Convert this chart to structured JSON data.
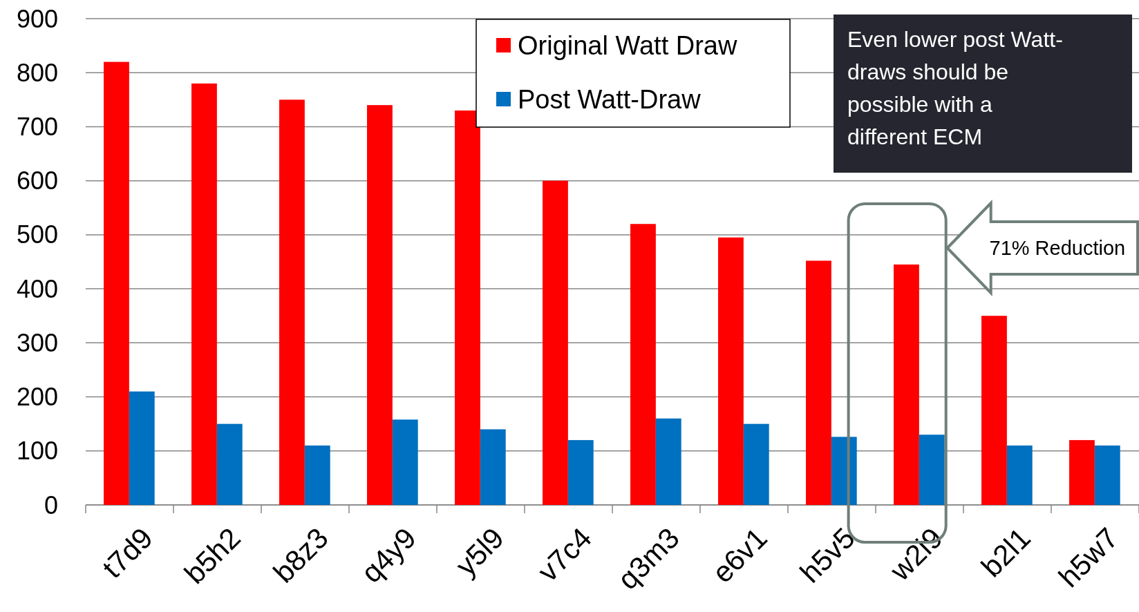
{
  "chart_data": {
    "type": "bar",
    "categories": [
      "t7d9",
      "b5h2",
      "b8z3",
      "q4y9",
      "y5l9",
      "v7c4",
      "q3m3",
      "e6v1",
      "h5v5",
      "w2i9",
      "b2l1",
      "h5w7"
    ],
    "series": [
      {
        "name": "Original Watt Draw",
        "color": "#ff0000",
        "values": [
          820,
          780,
          750,
          740,
          730,
          600,
          520,
          495,
          452,
          445,
          350,
          120
        ]
      },
      {
        "name": "Post Watt-Draw",
        "color": "#0070c0",
        "values": [
          210,
          150,
          110,
          158,
          140,
          120,
          160,
          150,
          126,
          130,
          110,
          110
        ]
      }
    ],
    "ylim": [
      0,
      900
    ],
    "yticks": [
      0,
      100,
      200,
      300,
      400,
      500,
      600,
      700,
      800,
      900
    ],
    "grid": "y",
    "legend": "top",
    "annotations": [
      "Even lower post Watt-draws should be possible with a different ECM",
      "71% Reduction"
    ]
  }
}
